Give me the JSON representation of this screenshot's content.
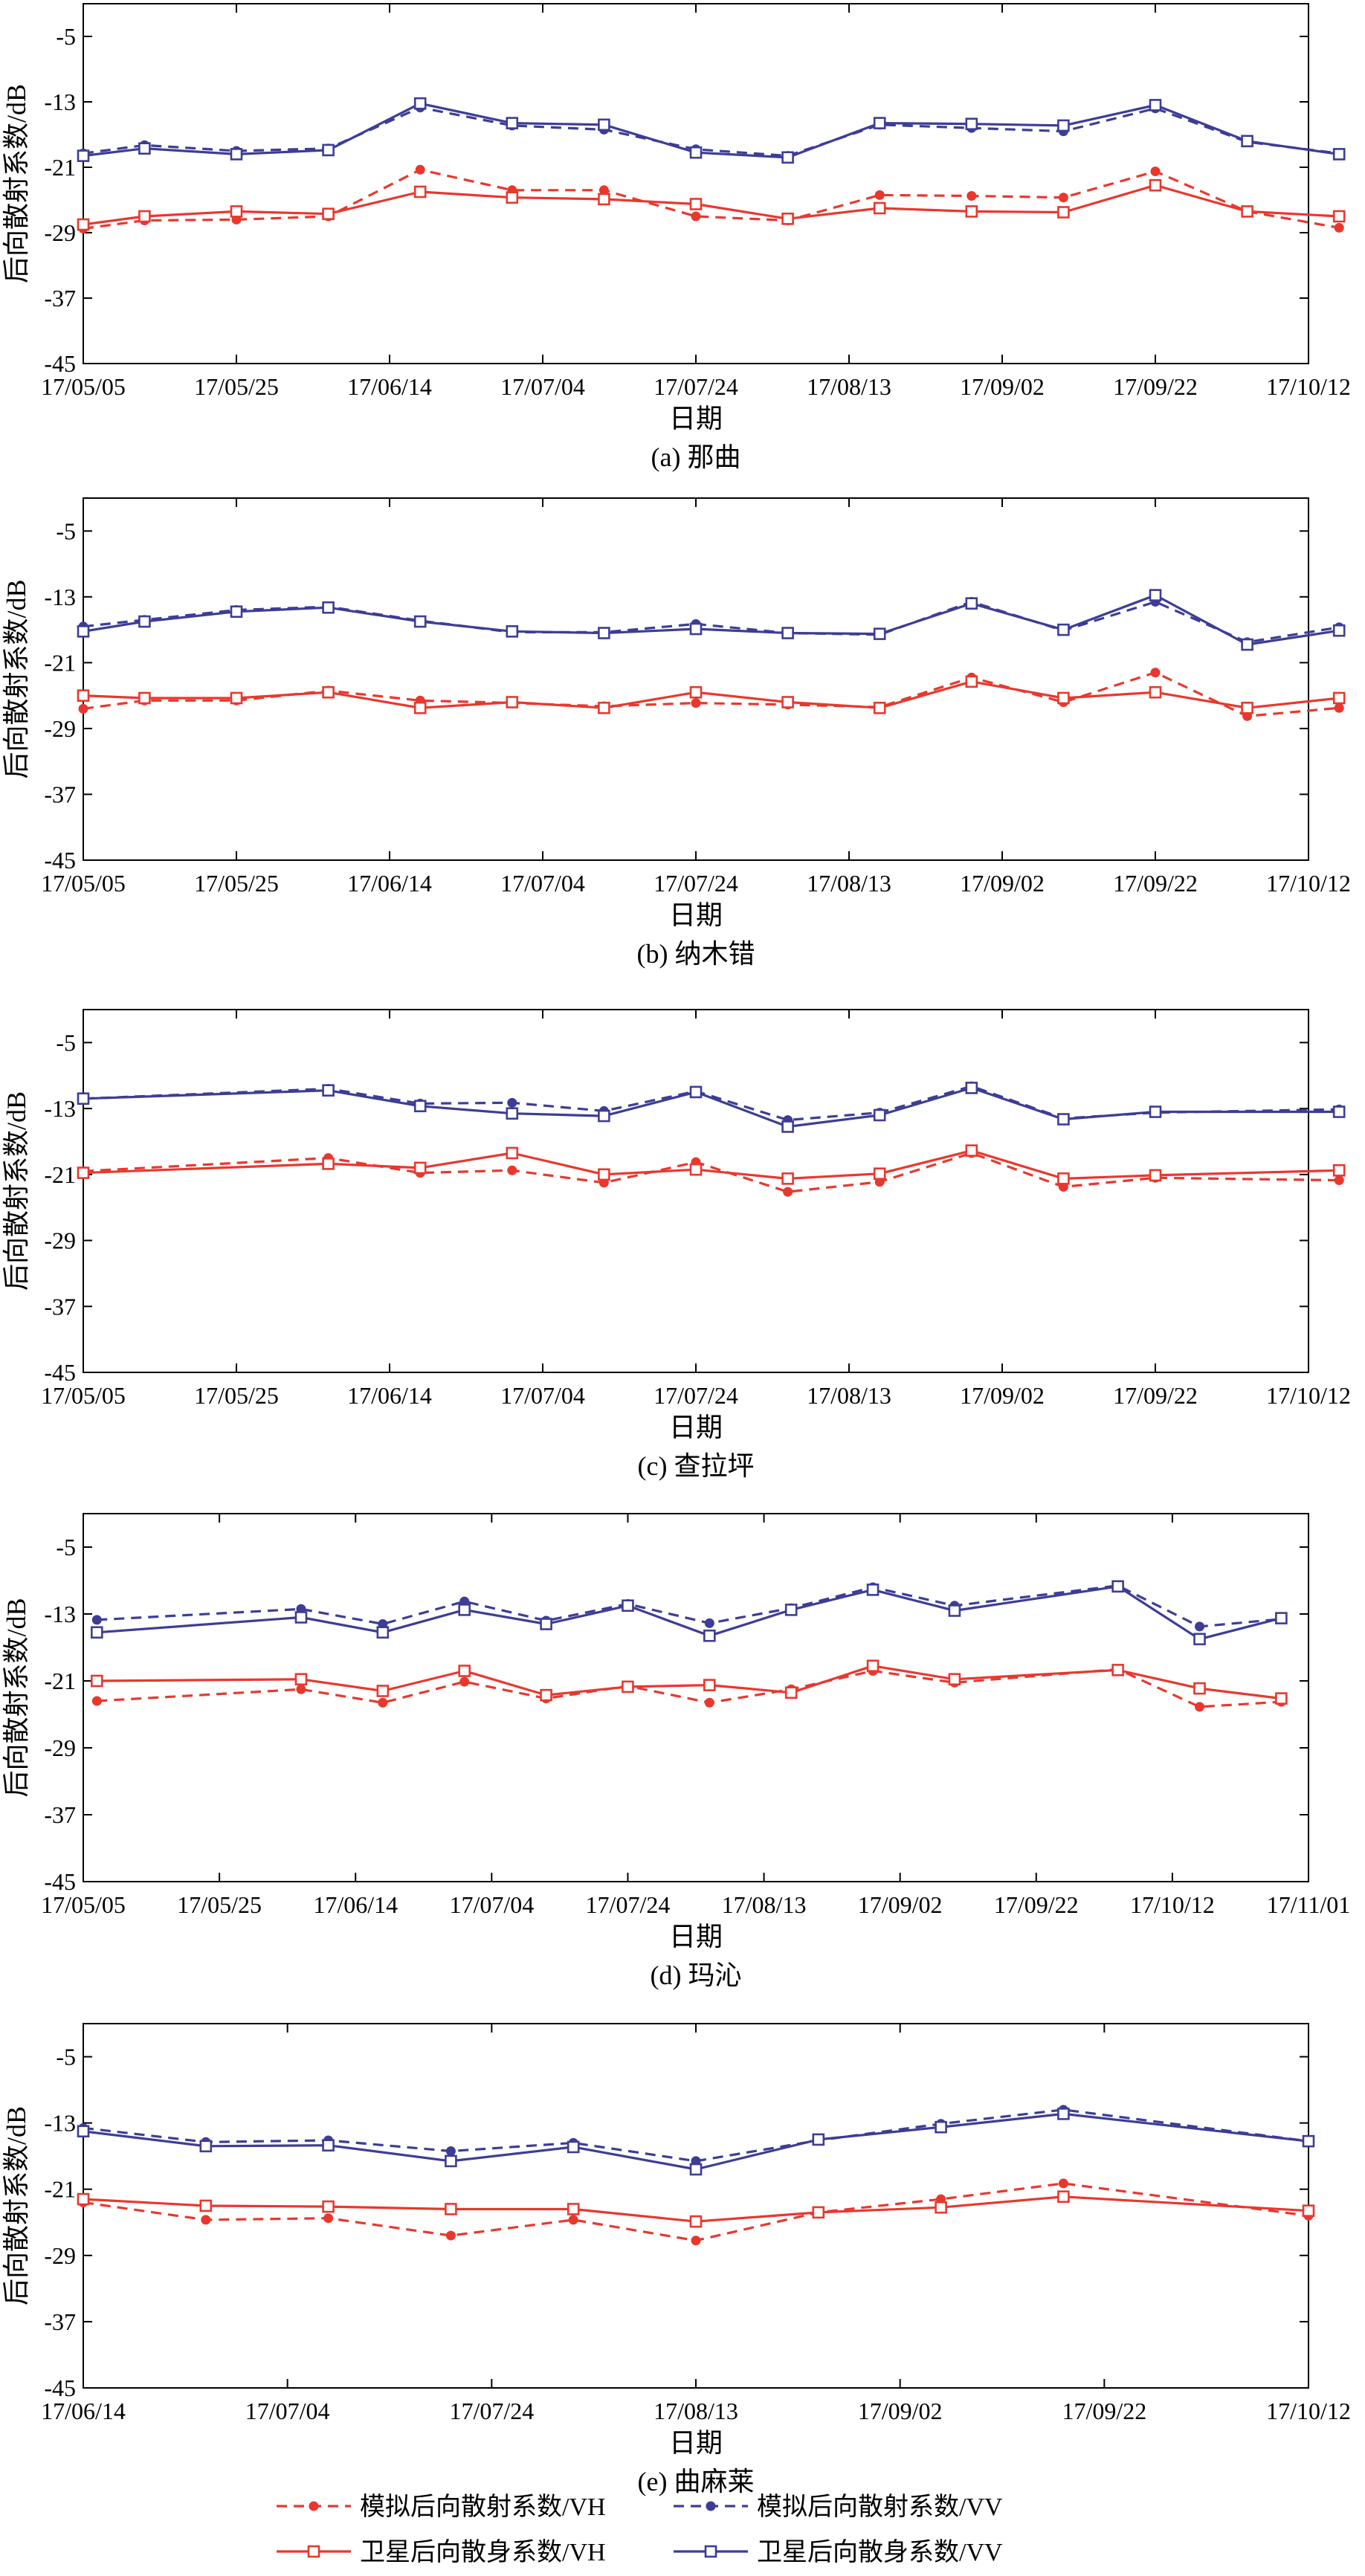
{
  "chart_data": [
    {
      "type": "line",
      "caption": "(a) 那曲",
      "xlabel": "日期",
      "ylabel": "后向散射系数/dB",
      "ylim": [
        -45,
        -1
      ],
      "yticks": [
        -5,
        -13,
        -21,
        -29,
        -37,
        -45
      ],
      "xlim": [
        "17/05/05",
        "17/10/12"
      ],
      "xticks": [
        "17/05/05",
        "17/05/25",
        "17/06/14",
        "17/07/04",
        "17/07/24",
        "17/08/13",
        "17/09/02",
        "17/09/22",
        "17/10/12"
      ],
      "series": [
        {
          "name": "模拟后向散射系数/VH",
          "x": [
            "17/05/05",
            "17/05/13",
            "17/05/25",
            "17/06/06",
            "17/06/18",
            "17/06/30",
            "17/07/12",
            "17/07/24",
            "17/08/05",
            "17/08/17",
            "17/08/29",
            "17/09/10",
            "17/09/22",
            "17/10/04",
            "17/10/16"
          ],
          "y": [
            -28.5,
            -27.5,
            -27.4,
            -27,
            -21.3,
            -23.8,
            -23.8,
            -27,
            -27.5,
            -24.4,
            -24.5,
            -24.7,
            -21.5,
            -26.4,
            -28.4
          ]
        },
        {
          "name": "模拟后向散射系数/VV",
          "x": [
            "17/05/05",
            "17/05/13",
            "17/05/25",
            "17/06/06",
            "17/06/18",
            "17/06/30",
            "17/07/12",
            "17/07/24",
            "17/08/05",
            "17/08/17",
            "17/08/29",
            "17/09/10",
            "17/09/22",
            "17/10/04",
            "17/10/16"
          ],
          "y": [
            -19.3,
            -18.3,
            -19,
            -18.7,
            -13.7,
            -15.9,
            -16.4,
            -18.8,
            -19.6,
            -15.8,
            -16.2,
            -16.6,
            -13.8,
            -17.9,
            -19.3
          ]
        },
        {
          "name": "卫星后向散身系数/VH",
          "x": [
            "17/05/05",
            "17/05/13",
            "17/05/25",
            "17/06/06",
            "17/06/18",
            "17/06/30",
            "17/07/12",
            "17/07/24",
            "17/08/05",
            "17/08/17",
            "17/08/29",
            "17/09/10",
            "17/09/22",
            "17/10/04",
            "17/10/16"
          ],
          "y": [
            -28,
            -27,
            -26.4,
            -26.7,
            -24,
            -24.7,
            -24.9,
            -25.5,
            -27.3,
            -26,
            -26.4,
            -26.5,
            -23.2,
            -26.4,
            -27
          ]
        },
        {
          "name": "卫星后向散身系数/VV",
          "x": [
            "17/05/05",
            "17/05/13",
            "17/05/25",
            "17/06/06",
            "17/06/18",
            "17/06/30",
            "17/07/12",
            "17/07/24",
            "17/08/05",
            "17/08/17",
            "17/08/29",
            "17/09/10",
            "17/09/22",
            "17/10/04",
            "17/10/16"
          ],
          "y": [
            -19.6,
            -18.7,
            -19.4,
            -18.9,
            -13.2,
            -15.6,
            -15.8,
            -19.2,
            -19.8,
            -15.6,
            -15.7,
            -15.9,
            -13.4,
            -17.8,
            -19.4
          ]
        }
      ]
    },
    {
      "type": "line",
      "caption": "(b) 纳木错",
      "xlabel": "日期",
      "ylabel": "后向散射系数/dB",
      "ylim": [
        -45,
        -1
      ],
      "yticks": [
        -5,
        -13,
        -21,
        -29,
        -37,
        -45
      ],
      "xlim": [
        "17/05/05",
        "17/10/12"
      ],
      "xticks": [
        "17/05/05",
        "17/05/25",
        "17/06/14",
        "17/07/04",
        "17/07/24",
        "17/08/13",
        "17/09/02",
        "17/09/22",
        "17/10/12"
      ],
      "series": [
        {
          "name": "模拟后向散射系数/VH",
          "x": [
            "17/05/05",
            "17/05/13",
            "17/05/25",
            "17/06/06",
            "17/06/18",
            "17/06/30",
            "17/07/12",
            "17/07/24",
            "17/08/05",
            "17/08/17",
            "17/08/29",
            "17/09/10",
            "17/09/22",
            "17/10/04",
            "17/10/16"
          ],
          "y": [
            -26.6,
            -25.6,
            -25.6,
            -24.4,
            -25.6,
            -25.9,
            -26.3,
            -25.9,
            -26.1,
            -26.4,
            -22.8,
            -25.8,
            -22.2,
            -27.5,
            -26.5
          ]
        },
        {
          "name": "模拟后向散射系数/VV",
          "x": [
            "17/05/05",
            "17/05/13",
            "17/05/25",
            "17/06/06",
            "17/06/18",
            "17/06/30",
            "17/07/12",
            "17/07/24",
            "17/08/05",
            "17/08/17",
            "17/08/29",
            "17/09/10",
            "17/09/22",
            "17/10/04",
            "17/10/16"
          ],
          "y": [
            -16.6,
            -15.8,
            -14.6,
            -14.2,
            -15.9,
            -17.3,
            -17.3,
            -16.3,
            -17.4,
            -17.6,
            -13.6,
            -17.1,
            -13.6,
            -18.5,
            -16.7
          ]
        },
        {
          "name": "卫星后向散身系数/VH",
          "x": [
            "17/05/05",
            "17/05/13",
            "17/05/25",
            "17/06/06",
            "17/06/18",
            "17/06/30",
            "17/07/12",
            "17/07/24",
            "17/08/05",
            "17/08/17",
            "17/08/29",
            "17/09/10",
            "17/09/22",
            "17/10/04",
            "17/10/16"
          ],
          "y": [
            -25,
            -25.3,
            -25.3,
            -24.6,
            -26.5,
            -25.8,
            -26.5,
            -24.6,
            -25.8,
            -26.5,
            -23.3,
            -25.3,
            -24.6,
            -26.5,
            -25.3
          ]
        },
        {
          "name": "卫星后向散身系数/VV",
          "x": [
            "17/05/05",
            "17/05/13",
            "17/05/25",
            "17/06/06",
            "17/06/18",
            "17/06/30",
            "17/07/12",
            "17/07/24",
            "17/08/05",
            "17/08/17",
            "17/08/29",
            "17/09/10",
            "17/09/22",
            "17/10/04",
            "17/10/16"
          ],
          "y": [
            -17.2,
            -16,
            -14.8,
            -14.3,
            -16,
            -17.2,
            -17.4,
            -16.9,
            -17.4,
            -17.5,
            -13.8,
            -17,
            -12.8,
            -18.8,
            -17.1
          ]
        }
      ]
    },
    {
      "type": "line",
      "caption": "(c) 查拉坪",
      "xlabel": "日期",
      "ylabel": "后向散射系数/dB",
      "ylim": [
        -45,
        -1
      ],
      "yticks": [
        -5,
        -13,
        -21,
        -29,
        -37,
        -45
      ],
      "xlim": [
        "17/05/05",
        "17/10/12"
      ],
      "xticks": [
        "17/05/05",
        "17/05/25",
        "17/06/14",
        "17/07/04",
        "17/07/24",
        "17/08/13",
        "17/09/02",
        "17/09/22",
        "17/10/12"
      ],
      "series": [
        {
          "name": "模拟后向散射系数/VH",
          "x": [
            "17/05/05",
            "17/06/06",
            "17/06/18",
            "17/06/30",
            "17/07/12",
            "17/07/24",
            "17/08/05",
            "17/08/17",
            "17/08/29",
            "17/09/10",
            "17/09/22",
            "17/10/16"
          ],
          "y": [
            -20.6,
            -19,
            -20.8,
            -20.5,
            -22,
            -19.5,
            -23.1,
            -21.9,
            -18.4,
            -22.5,
            -21.4,
            -21.7
          ]
        },
        {
          "name": "模拟后向散射系数/VV",
          "x": [
            "17/05/05",
            "17/06/06",
            "17/06/18",
            "17/06/30",
            "17/07/12",
            "17/07/24",
            "17/08/05",
            "17/08/17",
            "17/08/29",
            "17/09/10",
            "17/09/22",
            "17/10/16"
          ],
          "y": [
            -11.8,
            -10.6,
            -12.4,
            -12.3,
            -13.3,
            -10.9,
            -14.4,
            -13.5,
            -10.3,
            -14.2,
            -13.5,
            -13.1
          ]
        },
        {
          "name": "卫星后向散身系数/VH",
          "x": [
            "17/05/05",
            "17/06/06",
            "17/06/18",
            "17/06/30",
            "17/07/12",
            "17/07/24",
            "17/08/05",
            "17/08/17",
            "17/08/29",
            "17/09/10",
            "17/09/22",
            "17/10/16"
          ],
          "y": [
            -20.8,
            -19.7,
            -20.2,
            -18.4,
            -21,
            -20.4,
            -21.5,
            -20.9,
            -18.1,
            -21.5,
            -21.1,
            -20.5
          ]
        },
        {
          "name": "卫星后向散身系数/VV",
          "x": [
            "17/05/05",
            "17/06/06",
            "17/06/18",
            "17/06/30",
            "17/07/12",
            "17/07/24",
            "17/08/05",
            "17/08/17",
            "17/08/29",
            "17/09/10",
            "17/09/22",
            "17/10/16"
          ],
          "y": [
            -11.8,
            -10.8,
            -12.7,
            -13.6,
            -13.9,
            -11,
            -15.2,
            -13.8,
            -10.5,
            -14.3,
            -13.4,
            -13.4
          ]
        }
      ]
    },
    {
      "type": "line",
      "caption": "(d) 玛沁",
      "xlabel": "日期",
      "ylabel": "后向散射系数/dB",
      "ylim": [
        -45,
        -1
      ],
      "yticks": [
        -5,
        -13,
        -21,
        -29,
        -37,
        -45
      ],
      "xlim": [
        "17/05/05",
        "17/11/01"
      ],
      "xticks": [
        "17/05/05",
        "17/05/25",
        "17/06/14",
        "17/07/04",
        "17/07/24",
        "17/08/13",
        "17/09/02",
        "17/09/22",
        "17/10/12",
        "17/11/01"
      ],
      "series": [
        {
          "name": "模拟后向散射系数/VH",
          "x": [
            "17/05/07",
            "17/06/06",
            "17/06/18",
            "17/06/30",
            "17/07/12",
            "17/07/24",
            "17/08/05",
            "17/08/17",
            "17/08/29",
            "17/09/10",
            "17/10/04",
            "17/10/16",
            "17/10/28"
          ],
          "y": [
            -23.4,
            -22,
            -23.6,
            -21.1,
            -23.1,
            -21.6,
            -23.6,
            -22,
            -19.8,
            -21.2,
            -19.6,
            -24.1,
            -23.5
          ]
        },
        {
          "name": "模拟后向散射系数/VV",
          "x": [
            "17/05/07",
            "17/06/06",
            "17/06/18",
            "17/06/30",
            "17/07/12",
            "17/07/24",
            "17/08/05",
            "17/08/17",
            "17/08/29",
            "17/09/10",
            "17/10/04",
            "17/10/16",
            "17/10/28"
          ],
          "y": [
            -13.7,
            -12.4,
            -14.2,
            -11.5,
            -13.8,
            -11.8,
            -14.1,
            -12.3,
            -9.8,
            -12,
            -9.6,
            -14.5,
            -13.6
          ]
        },
        {
          "name": "卫星后向散身系数/VH",
          "x": [
            "17/05/07",
            "17/06/06",
            "17/06/18",
            "17/06/30",
            "17/07/12",
            "17/07/24",
            "17/08/05",
            "17/08/17",
            "17/08/29",
            "17/09/10",
            "17/10/04",
            "17/10/16",
            "17/10/28"
          ],
          "y": [
            -21,
            -20.8,
            -22.2,
            -19.8,
            -22.7,
            -21.7,
            -21.5,
            -22.4,
            -19.2,
            -20.8,
            -19.7,
            -21.9,
            -23.1
          ]
        },
        {
          "name": "卫星后向散身系数/VV",
          "x": [
            "17/05/07",
            "17/06/06",
            "17/06/18",
            "17/06/30",
            "17/07/12",
            "17/07/24",
            "17/08/05",
            "17/08/17",
            "17/08/29",
            "17/09/10",
            "17/10/04",
            "17/10/16",
            "17/10/28"
          ],
          "y": [
            -15.2,
            -13.4,
            -15.2,
            -12.5,
            -14.2,
            -12,
            -15.6,
            -12.5,
            -10.1,
            -12.6,
            -9.7,
            -16,
            -13.5
          ]
        }
      ]
    },
    {
      "type": "line",
      "caption": "(e) 曲麻莱",
      "xlabel": "日期",
      "ylabel": "后向散射系数/dB",
      "ylim": [
        -45,
        -1
      ],
      "yticks": [
        -5,
        -13,
        -21,
        -29,
        -37,
        -45
      ],
      "xlim": [
        "17/06/14",
        "17/10/12"
      ],
      "xticks": [
        "17/06/14",
        "17/07/04",
        "17/07/24",
        "17/08/13",
        "17/09/02",
        "17/09/22",
        "17/10/12"
      ],
      "series": [
        {
          "name": "模拟后向散射系数/VH",
          "x": [
            "17/06/14",
            "17/06/26",
            "17/07/08",
            "17/07/20",
            "17/08/01",
            "17/08/13",
            "17/08/25",
            "17/09/06",
            "17/09/18",
            "17/10/12"
          ],
          "y": [
            -22.6,
            -24.7,
            -24.5,
            -26.6,
            -24.7,
            -27.2,
            -23.8,
            -22.2,
            -20.3,
            -24.2
          ]
        },
        {
          "name": "模拟后向散射系数/VV",
          "x": [
            "17/06/14",
            "17/06/26",
            "17/07/08",
            "17/07/20",
            "17/08/01",
            "17/08/13",
            "17/08/25",
            "17/09/06",
            "17/09/18",
            "17/10/12"
          ],
          "y": [
            -13.6,
            -15.3,
            -15.1,
            -16.4,
            -15.4,
            -17.6,
            -15.1,
            -13.1,
            -11.4,
            -15.2
          ]
        },
        {
          "name": "卫星后向散身系数/VH",
          "x": [
            "17/06/14",
            "17/06/26",
            "17/07/08",
            "17/07/20",
            "17/08/01",
            "17/08/13",
            "17/08/25",
            "17/09/06",
            "17/09/18",
            "17/10/12"
          ],
          "y": [
            -22.2,
            -23,
            -23.1,
            -23.4,
            -23.4,
            -24.9,
            -23.8,
            -23.2,
            -21.9,
            -23.6
          ]
        },
        {
          "name": "卫星后向散身系数/VV",
          "x": [
            "17/06/14",
            "17/06/26",
            "17/07/08",
            "17/07/20",
            "17/08/01",
            "17/08/13",
            "17/08/25",
            "17/09/06",
            "17/09/18",
            "17/10/12"
          ],
          "y": [
            -14,
            -15.8,
            -15.7,
            -17.6,
            -15.9,
            -18.6,
            -15,
            -13.5,
            -11.9,
            -15.2
          ]
        }
      ]
    }
  ],
  "legend": {
    "items": [
      "模拟后向散射系数/VH",
      "模拟后向散射系数/VV",
      "卫星后向散身系数/VH",
      "卫星后向散身系数/VV"
    ],
    "colors": {
      "vh": "#e8382e",
      "vv": "#3d3d96"
    },
    "placement": "bottom-center"
  }
}
